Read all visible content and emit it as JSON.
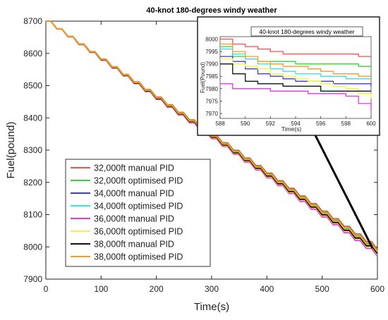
{
  "chart_data": [
    {
      "type": "line",
      "title": "40-knot 180-degrees windy weather",
      "xlabel": "Time(s)",
      "ylabel": "Fuel(pound)",
      "xlim": [
        0,
        600
      ],
      "ylim": [
        7900,
        8700
      ],
      "xticks": [
        "0",
        "100",
        "200",
        "300",
        "400",
        "500",
        "600"
      ],
      "yticks": [
        "7900",
        "8000",
        "8100",
        "8200",
        "8300",
        "8400",
        "8500",
        "8600",
        "8700"
      ],
      "grid": false,
      "legend_position": "bottom-left",
      "series": [
        {
          "name": "32,000ft manual PID",
          "color": "#ff4b4b",
          "start": 8700,
          "end": 7993
        },
        {
          "name": "32,000ft optimised PID",
          "color": "#33d633",
          "start": 8700,
          "end": 7988
        },
        {
          "name": "34,000ft manual PID",
          "color": "#3b3bd6",
          "start": 8700,
          "end": 7981
        },
        {
          "name": "34,000ft optimised  PID",
          "color": "#33e6e6",
          "start": 8700,
          "end": 7984
        },
        {
          "name": "36,000ft manual PID",
          "color": "#e633e6",
          "start": 8700,
          "end": 7971
        },
        {
          "name": "36,000ft optimised PID",
          "color": "#f5f53a",
          "start": 8700,
          "end": 7976
        },
        {
          "name": "38,000ft manual PID",
          "color": "#111111",
          "start": 8700,
          "end": 7979
        },
        {
          "name": "38,000ft optimised PID",
          "color": "#ff9a1f",
          "start": 8700,
          "end": 7985
        }
      ]
    },
    {
      "type": "line",
      "title": "40-knot 180-degrees windy weather",
      "xlabel": "Time(s)",
      "ylabel": "Fuel(Pound)",
      "xlim": [
        588,
        600
      ],
      "ylim": [
        7968,
        8001
      ],
      "xticks": [
        "588",
        "590",
        "592",
        "594",
        "596",
        "598",
        "600"
      ],
      "yticks": [
        "7970",
        "7975",
        "7980",
        "7985",
        "7990",
        "7995",
        "8000"
      ],
      "grid": false,
      "series": [
        {
          "name": "32,000ft manual PID",
          "color": "#ff4b4b",
          "x": [
            588,
            589,
            590,
            591,
            592,
            593,
            594,
            595,
            596,
            597,
            598,
            599,
            600
          ],
          "y": [
            8000,
            7998,
            7997,
            7996,
            7995,
            7994,
            7994,
            7994,
            7994,
            7994,
            7994,
            7993,
            7993
          ]
        },
        {
          "name": "32,000ft optimised PID",
          "color": "#33d633",
          "x": [
            588,
            589,
            590,
            591,
            592,
            593,
            594,
            595,
            596,
            597,
            598,
            599,
            600
          ],
          "y": [
            7997,
            7993,
            7992,
            7991,
            7991,
            7991,
            7990,
            7990,
            7990,
            7990,
            7990,
            7989,
            7988
          ]
        },
        {
          "name": "34,000ft manual PID",
          "color": "#3b3bd6",
          "x": [
            588,
            589,
            590,
            591,
            592,
            593,
            594,
            595,
            596,
            597,
            598,
            599,
            600
          ],
          "y": [
            7993,
            7991,
            7988,
            7986,
            7985,
            7984,
            7983,
            7983,
            7983,
            7982,
            7982,
            7982,
            7981
          ]
        },
        {
          "name": "34,000ft optimised  PID",
          "color": "#33e6e6",
          "x": [
            588,
            589,
            590,
            591,
            592,
            593,
            594,
            595,
            596,
            597,
            598,
            599,
            600
          ],
          "y": [
            7996,
            7994,
            7992,
            7990,
            7988,
            7987,
            7986,
            7986,
            7985,
            7985,
            7984,
            7984,
            7984
          ]
        },
        {
          "name": "36,000ft manual PID",
          "color": "#e633e6",
          "x": [
            588,
            589,
            590,
            591,
            592,
            593,
            594,
            595,
            596,
            597,
            598,
            599,
            600
          ],
          "y": [
            7982,
            7980,
            7980,
            7980,
            7979,
            7979,
            7979,
            7978,
            7978,
            7978,
            7977,
            7974,
            7971
          ]
        },
        {
          "name": "36,000ft optimised PID",
          "color": "#f5f53a",
          "x": [
            588,
            589,
            590,
            591,
            592,
            593,
            594,
            595,
            596,
            597,
            598,
            599,
            600
          ],
          "y": [
            7992,
            7990,
            7989,
            7988,
            7986,
            7985,
            7984,
            7983,
            7982,
            7981,
            7980,
            7978,
            7976
          ]
        },
        {
          "name": "38,000ft manual PID",
          "color": "#111111",
          "x": [
            588,
            589,
            590,
            591,
            592,
            593,
            594,
            595,
            596,
            597,
            598,
            599,
            600
          ],
          "y": [
            7990,
            7986,
            7983,
            7982,
            7982,
            7981,
            7981,
            7981,
            7979,
            7979,
            7979,
            7979,
            7979
          ]
        },
        {
          "name": "38,000ft optimised PID",
          "color": "#ff9a1f",
          "x": [
            588,
            589,
            590,
            591,
            592,
            593,
            594,
            595,
            596,
            597,
            598,
            599,
            600
          ],
          "y": [
            7998,
            7995,
            7993,
            7991,
            7990,
            7989,
            7989,
            7988,
            7987,
            7986,
            7986,
            7985,
            7985
          ]
        }
      ]
    }
  ]
}
